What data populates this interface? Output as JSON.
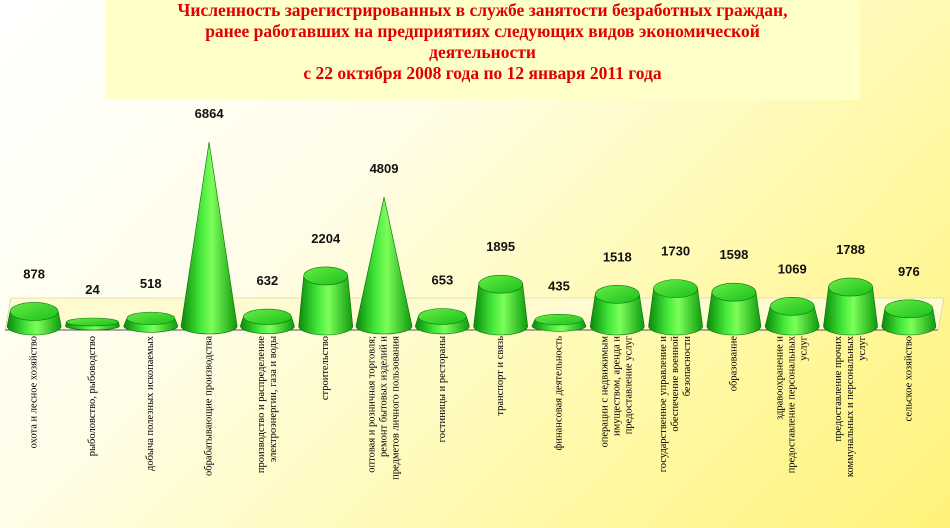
{
  "title_lines": [
    "Численность зарегистрированных в службе занятости безработных граждан,",
    "ранее работавших на предприятиях следующих видов экономической",
    "деятельности",
    "с 22 октября 2008 года по 12 января 2011 года"
  ],
  "colors": {
    "title": "#e00000",
    "bar": "#22cc22",
    "bar_dark": "#0a7a0a",
    "bar_light": "#8cff6a"
  },
  "chart_data": {
    "type": "bar",
    "title": "Численность зарегистрированных в службе занятости безработных граждан, ранее работавших на предприятиях следующих видов экономической деятельности с 22 октября 2008 года по 12 января 2011 года",
    "categories": [
      "охота и лесное хозяйство",
      "рыболовство, рыбоводство",
      "добыча полезных ископаемых",
      "обрабатывающие производства",
      "производство и распределение электроэнергии, газа и воды",
      "строительство",
      "оптовая и розничная торговля; ремонт бытовых изделий и предметов личного пользования",
      "гостиницы и рестораны",
      "транспорт и связь",
      "финансовая деятельность",
      "операции с недвижимым имуществом, аренда и предоставление услуг",
      "государственное управление и обеспечение военной безопасности",
      "образование",
      "здравоохранение и предоставление персональных услуг",
      "предоставление прочих коммунальных и персональных услуг",
      "сельское хозяйство"
    ],
    "category_lines": [
      [
        "охота и лесное хозяйство"
      ],
      [
        "рыболовство, рыбоводство"
      ],
      [
        "добыча полезных ископаемых"
      ],
      [
        "обрабатывающие производства"
      ],
      [
        "производство и распределение",
        "электроэнергии, газа и воды"
      ],
      [
        "строительство"
      ],
      [
        "оптовая и розничная торговля;",
        "ремонт бытовых изделий и",
        "предметов личного пользования"
      ],
      [
        "гостиницы и рестораны"
      ],
      [
        "транспорт и связь"
      ],
      [
        "финансовая деятельность"
      ],
      [
        "операции с недвижимым",
        "имуществом, аренда и",
        "предоставление услуг"
      ],
      [
        "государственное управление и",
        "обеспечение военной",
        "безопасности"
      ],
      [
        "образование"
      ],
      [
        "здравоохранение и",
        "предоставление персональных",
        "услуг"
      ],
      [
        "предоставление прочих",
        "коммунальных и персональных",
        "услуг"
      ],
      [
        "сельское хозяйство"
      ]
    ],
    "values": [
      878,
      24,
      518,
      6864,
      632,
      2204,
      4809,
      653,
      1895,
      435,
      1518,
      1730,
      1598,
      1069,
      1788,
      976
    ],
    "shapes": [
      "cylinder",
      "cylinder",
      "cylinder",
      "cone",
      "cylinder",
      "cylinder",
      "cone",
      "cylinder",
      "cylinder",
      "cylinder",
      "cylinder",
      "cylinder",
      "cylinder",
      "cylinder",
      "cylinder",
      "cylinder"
    ],
    "ylim": [
      0,
      7000
    ],
    "grid": false,
    "legend": "none"
  }
}
